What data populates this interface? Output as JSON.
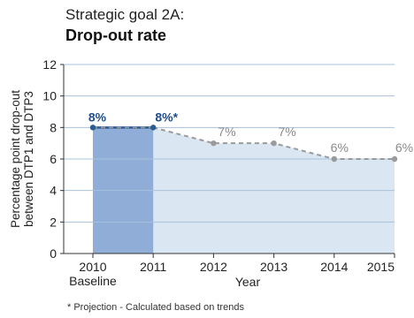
{
  "header": {
    "supertitle": "Strategic goal 2A:",
    "title": "Drop-out rate"
  },
  "footnote": "* Projection - Calculated based on trends",
  "chart_data": {
    "type": "area",
    "x": [
      2010,
      2011,
      2012,
      2013,
      2014,
      2015
    ],
    "x_tick_labels": [
      "2010",
      "2011",
      "2012",
      "2013",
      "2014",
      "2015"
    ],
    "x_sublabel": "Baseline",
    "series": [
      {
        "values": [
          8,
          8,
          7,
          7,
          6,
          6
        ],
        "labels": [
          "8%",
          "8%*",
          "7%",
          "7%",
          "6%",
          "6%"
        ]
      }
    ],
    "actual_range": [
      2010,
      2011
    ],
    "projected_range": [
      2011,
      2015
    ],
    "xlabel": "Year",
    "ylabel": [
      "Percentage point drop-out",
      "between DTP1 and DTP3"
    ],
    "ylim": [
      0,
      12
    ],
    "yticks": [
      0,
      2,
      4,
      6,
      8,
      10,
      12
    ],
    "grid": true,
    "colors": {
      "actual_fill": "#8fadd6",
      "projected_fill": "#dbe6f3",
      "actual_line": "#2b5b93",
      "projected_line": "#9a9a9a",
      "actual_label": "#1f4e8c",
      "projected_label": "#8a8a8a",
      "grid": "#a9c1de",
      "axis": "#333333"
    }
  }
}
